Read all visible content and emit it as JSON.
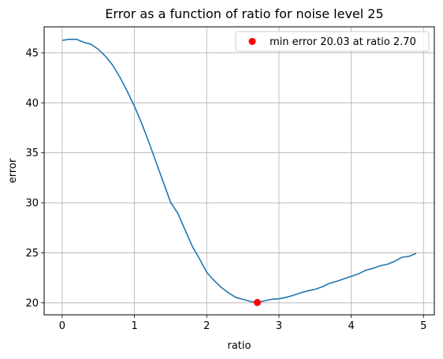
{
  "chart_data": {
    "type": "line",
    "title": "Error as a function of ratio for noise level 25",
    "xlabel": "ratio",
    "ylabel": "error",
    "xlim": [
      -0.25,
      5.15
    ],
    "ylim": [
      18.8,
      47.6
    ],
    "xticks": [
      0,
      1,
      2,
      3,
      4,
      5
    ],
    "yticks": [
      20,
      25,
      30,
      35,
      40,
      45
    ],
    "grid": true,
    "legend_position": "top-right",
    "series": [
      {
        "color": "#1f77b4",
        "x": [
          0.0,
          0.1,
          0.2,
          0.3,
          0.4,
          0.5,
          0.6,
          0.7,
          0.8,
          0.9,
          1.0,
          1.1,
          1.2,
          1.3,
          1.4,
          1.5,
          1.6,
          1.7,
          1.8,
          1.9,
          2.0,
          2.1,
          2.2,
          2.3,
          2.4,
          2.5,
          2.6,
          2.7,
          2.8,
          2.9,
          3.0,
          3.1,
          3.2,
          3.3,
          3.4,
          3.5,
          3.6,
          3.7,
          3.8,
          3.9,
          4.0,
          4.1,
          4.2,
          4.3,
          4.4,
          4.5,
          4.6,
          4.7,
          4.8,
          4.9
        ],
        "y": [
          46.25,
          46.35,
          46.35,
          46.05,
          45.85,
          45.35,
          44.65,
          43.75,
          42.55,
          41.15,
          39.65,
          37.95,
          36.05,
          34.05,
          32.05,
          30.05,
          28.95,
          27.3,
          25.65,
          24.4,
          23.05,
          22.25,
          21.55,
          21.0,
          20.55,
          20.35,
          20.15,
          20.03,
          20.2,
          20.35,
          20.4,
          20.55,
          20.75,
          21.0,
          21.2,
          21.35,
          21.6,
          21.95,
          22.15,
          22.4,
          22.65,
          22.9,
          23.25,
          23.45,
          23.7,
          23.85,
          24.15,
          24.55,
          24.65,
          24.95
        ]
      }
    ],
    "marker": {
      "label": "min error 20.03 at ratio 2.70",
      "x": 2.7,
      "y": 20.03,
      "color": "#ff0000"
    }
  }
}
